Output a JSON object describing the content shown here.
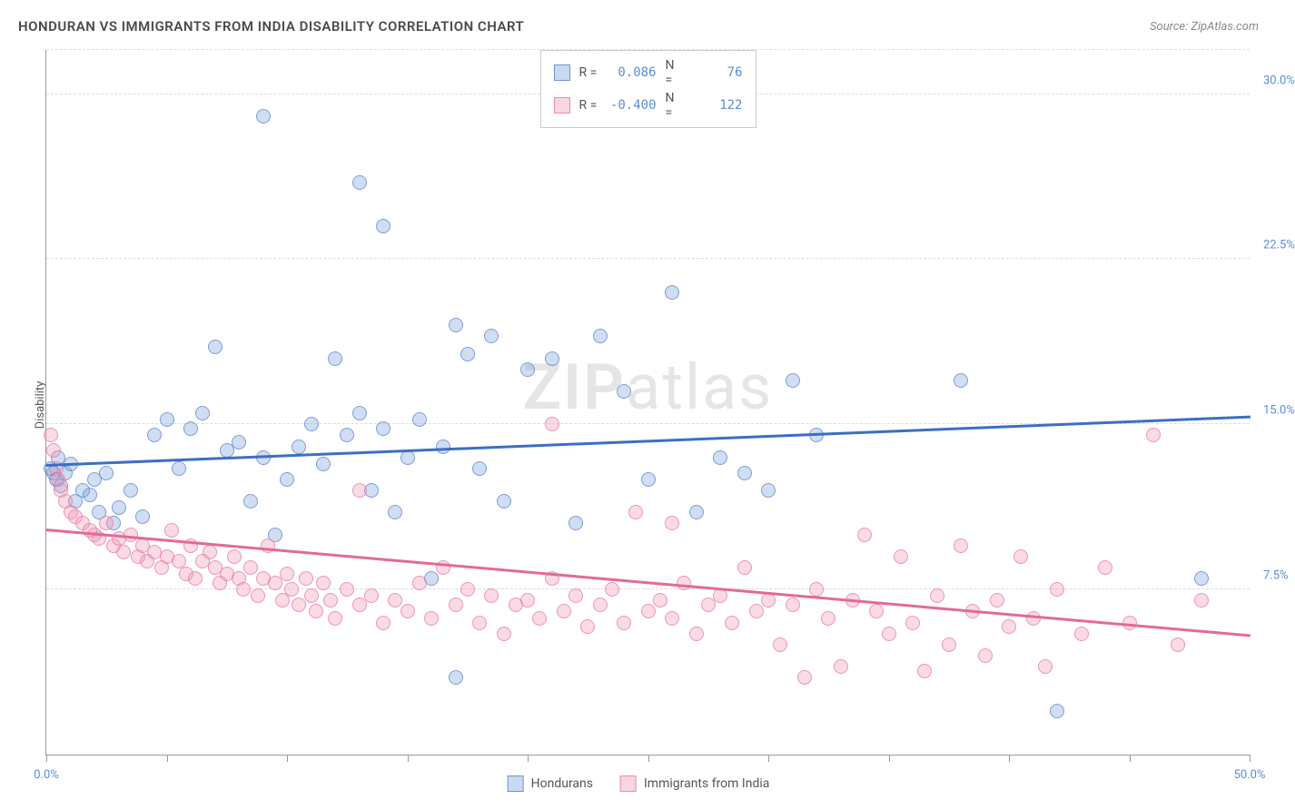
{
  "header": {
    "title": "HONDURAN VS IMMIGRANTS FROM INDIA DISABILITY CORRELATION CHART",
    "source_prefix": "Source: ",
    "source_name": "ZipAtlas.com"
  },
  "watermark": {
    "part1": "ZIP",
    "part2": "atlas"
  },
  "chart": {
    "type": "scatter",
    "y_axis_label": "Disability",
    "xlim": [
      0,
      50
    ],
    "ylim": [
      0,
      32
    ],
    "y_ticks": [
      7.5,
      15.0,
      22.5,
      30.0
    ],
    "y_tick_labels": [
      "7.5%",
      "15.0%",
      "22.5%",
      "30.0%"
    ],
    "x_ticks": [
      0,
      5,
      10,
      15,
      20,
      25,
      30,
      35,
      40,
      45,
      50
    ],
    "x_tick_labels": {
      "0": "0.0%",
      "50": "50.0%"
    },
    "background_color": "#ffffff",
    "grid_color": "#dddddd",
    "marker_radius": 8,
    "series": [
      {
        "name": "Hondurans",
        "color_fill": "rgba(120,160,220,0.35)",
        "color_stroke": "rgba(90,130,200,0.7)",
        "class": "blue",
        "R": "0.086",
        "N": "76",
        "trend": {
          "x1": 0,
          "y1": 13.2,
          "x2": 50,
          "y2": 15.4,
          "color": "#3b6fc4"
        },
        "points": [
          [
            0.2,
            13.0
          ],
          [
            0.3,
            12.8
          ],
          [
            0.4,
            12.5
          ],
          [
            0.5,
            13.5
          ],
          [
            0.6,
            12.2
          ],
          [
            0.8,
            12.8
          ],
          [
            1.0,
            13.2
          ],
          [
            1.2,
            11.5
          ],
          [
            1.5,
            12.0
          ],
          [
            1.8,
            11.8
          ],
          [
            2.0,
            12.5
          ],
          [
            2.2,
            11.0
          ],
          [
            2.5,
            12.8
          ],
          [
            2.8,
            10.5
          ],
          [
            3.0,
            11.2
          ],
          [
            3.5,
            12.0
          ],
          [
            4.0,
            10.8
          ],
          [
            4.5,
            14.5
          ],
          [
            5.0,
            15.2
          ],
          [
            5.5,
            13.0
          ],
          [
            6.0,
            14.8
          ],
          [
            6.5,
            15.5
          ],
          [
            7.0,
            18.5
          ],
          [
            7.5,
            13.8
          ],
          [
            8.0,
            14.2
          ],
          [
            8.5,
            11.5
          ],
          [
            9.0,
            13.5
          ],
          [
            9.0,
            29.0
          ],
          [
            9.5,
            10.0
          ],
          [
            10.0,
            12.5
          ],
          [
            10.5,
            14.0
          ],
          [
            11.0,
            15.0
          ],
          [
            11.5,
            13.2
          ],
          [
            12.0,
            18.0
          ],
          [
            12.5,
            14.5
          ],
          [
            13.0,
            15.5
          ],
          [
            13.0,
            26.0
          ],
          [
            13.5,
            12.0
          ],
          [
            14.0,
            14.8
          ],
          [
            14.0,
            24.0
          ],
          [
            14.5,
            11.0
          ],
          [
            15.0,
            13.5
          ],
          [
            15.5,
            15.2
          ],
          [
            16.0,
            8.0
          ],
          [
            16.5,
            14.0
          ],
          [
            17.0,
            19.5
          ],
          [
            17.0,
            3.5
          ],
          [
            17.5,
            18.2
          ],
          [
            18.0,
            13.0
          ],
          [
            18.5,
            19.0
          ],
          [
            19.0,
            11.5
          ],
          [
            20.0,
            17.5
          ],
          [
            21.0,
            18.0
          ],
          [
            22.0,
            10.5
          ],
          [
            23.0,
            19.0
          ],
          [
            24.0,
            16.5
          ],
          [
            25.0,
            12.5
          ],
          [
            26.0,
            21.0
          ],
          [
            27.0,
            11.0
          ],
          [
            28.0,
            13.5
          ],
          [
            29.0,
            12.8
          ],
          [
            30.0,
            12.0
          ],
          [
            31.0,
            17.0
          ],
          [
            32.0,
            14.5
          ],
          [
            38.0,
            17.0
          ],
          [
            42.0,
            2.0
          ],
          [
            48.0,
            8.0
          ]
        ]
      },
      {
        "name": "Immigrants from India",
        "color_fill": "rgba(240,150,180,0.35)",
        "color_stroke": "rgba(230,120,160,0.7)",
        "class": "pink",
        "R": "-0.400",
        "N": "122",
        "trend": {
          "x1": 0,
          "y1": 10.3,
          "x2": 50,
          "y2": 5.5,
          "color": "#e46a94"
        },
        "points": [
          [
            0.2,
            14.5
          ],
          [
            0.3,
            13.8
          ],
          [
            0.4,
            13.0
          ],
          [
            0.5,
            12.5
          ],
          [
            0.6,
            12.0
          ],
          [
            0.8,
            11.5
          ],
          [
            1.0,
            11.0
          ],
          [
            1.2,
            10.8
          ],
          [
            1.5,
            10.5
          ],
          [
            1.8,
            10.2
          ],
          [
            2.0,
            10.0
          ],
          [
            2.2,
            9.8
          ],
          [
            2.5,
            10.5
          ],
          [
            2.8,
            9.5
          ],
          [
            3.0,
            9.8
          ],
          [
            3.2,
            9.2
          ],
          [
            3.5,
            10.0
          ],
          [
            3.8,
            9.0
          ],
          [
            4.0,
            9.5
          ],
          [
            4.2,
            8.8
          ],
          [
            4.5,
            9.2
          ],
          [
            4.8,
            8.5
          ],
          [
            5.0,
            9.0
          ],
          [
            5.2,
            10.2
          ],
          [
            5.5,
            8.8
          ],
          [
            5.8,
            8.2
          ],
          [
            6.0,
            9.5
          ],
          [
            6.2,
            8.0
          ],
          [
            6.5,
            8.8
          ],
          [
            6.8,
            9.2
          ],
          [
            7.0,
            8.5
          ],
          [
            7.2,
            7.8
          ],
          [
            7.5,
            8.2
          ],
          [
            7.8,
            9.0
          ],
          [
            8.0,
            8.0
          ],
          [
            8.2,
            7.5
          ],
          [
            8.5,
            8.5
          ],
          [
            8.8,
            7.2
          ],
          [
            9.0,
            8.0
          ],
          [
            9.2,
            9.5
          ],
          [
            9.5,
            7.8
          ],
          [
            9.8,
            7.0
          ],
          [
            10.0,
            8.2
          ],
          [
            10.2,
            7.5
          ],
          [
            10.5,
            6.8
          ],
          [
            10.8,
            8.0
          ],
          [
            11.0,
            7.2
          ],
          [
            11.2,
            6.5
          ],
          [
            11.5,
            7.8
          ],
          [
            11.8,
            7.0
          ],
          [
            12.0,
            6.2
          ],
          [
            12.5,
            7.5
          ],
          [
            13.0,
            6.8
          ],
          [
            13.0,
            12.0
          ],
          [
            13.5,
            7.2
          ],
          [
            14.0,
            6.0
          ],
          [
            14.5,
            7.0
          ],
          [
            15.0,
            6.5
          ],
          [
            15.5,
            7.8
          ],
          [
            16.0,
            6.2
          ],
          [
            16.5,
            8.5
          ],
          [
            17.0,
            6.8
          ],
          [
            17.5,
            7.5
          ],
          [
            18.0,
            6.0
          ],
          [
            18.5,
            7.2
          ],
          [
            19.0,
            5.5
          ],
          [
            19.5,
            6.8
          ],
          [
            20.0,
            7.0
          ],
          [
            20.5,
            6.2
          ],
          [
            21.0,
            8.0
          ],
          [
            21.0,
            15.0
          ],
          [
            21.5,
            6.5
          ],
          [
            22.0,
            7.2
          ],
          [
            22.5,
            5.8
          ],
          [
            23.0,
            6.8
          ],
          [
            23.5,
            7.5
          ],
          [
            24.0,
            6.0
          ],
          [
            24.5,
            11.0
          ],
          [
            25.0,
            6.5
          ],
          [
            25.5,
            7.0
          ],
          [
            26.0,
            10.5
          ],
          [
            26.0,
            6.2
          ],
          [
            26.5,
            7.8
          ],
          [
            27.0,
            5.5
          ],
          [
            27.5,
            6.8
          ],
          [
            28.0,
            7.2
          ],
          [
            28.5,
            6.0
          ],
          [
            29.0,
            8.5
          ],
          [
            29.5,
            6.5
          ],
          [
            30.0,
            7.0
          ],
          [
            30.5,
            5.0
          ],
          [
            31.0,
            6.8
          ],
          [
            31.5,
            3.5
          ],
          [
            32.0,
            7.5
          ],
          [
            32.5,
            6.2
          ],
          [
            33.0,
            4.0
          ],
          [
            33.5,
            7.0
          ],
          [
            34.0,
            10.0
          ],
          [
            34.5,
            6.5
          ],
          [
            35.0,
            5.5
          ],
          [
            35.5,
            9.0
          ],
          [
            36.0,
            6.0
          ],
          [
            36.5,
            3.8
          ],
          [
            37.0,
            7.2
          ],
          [
            37.5,
            5.0
          ],
          [
            38.0,
            9.5
          ],
          [
            38.5,
            6.5
          ],
          [
            39.0,
            4.5
          ],
          [
            39.5,
            7.0
          ],
          [
            40.0,
            5.8
          ],
          [
            40.5,
            9.0
          ],
          [
            41.0,
            6.2
          ],
          [
            41.5,
            4.0
          ],
          [
            42.0,
            7.5
          ],
          [
            43.0,
            5.5
          ],
          [
            44.0,
            8.5
          ],
          [
            45.0,
            6.0
          ],
          [
            46.0,
            14.5
          ],
          [
            47.0,
            5.0
          ],
          [
            48.0,
            7.0
          ]
        ]
      }
    ]
  },
  "legend_top": {
    "R_label": "R =",
    "N_label": "N ="
  },
  "legend_bottom": {
    "items": [
      "Hondurans",
      "Immigrants from India"
    ]
  }
}
